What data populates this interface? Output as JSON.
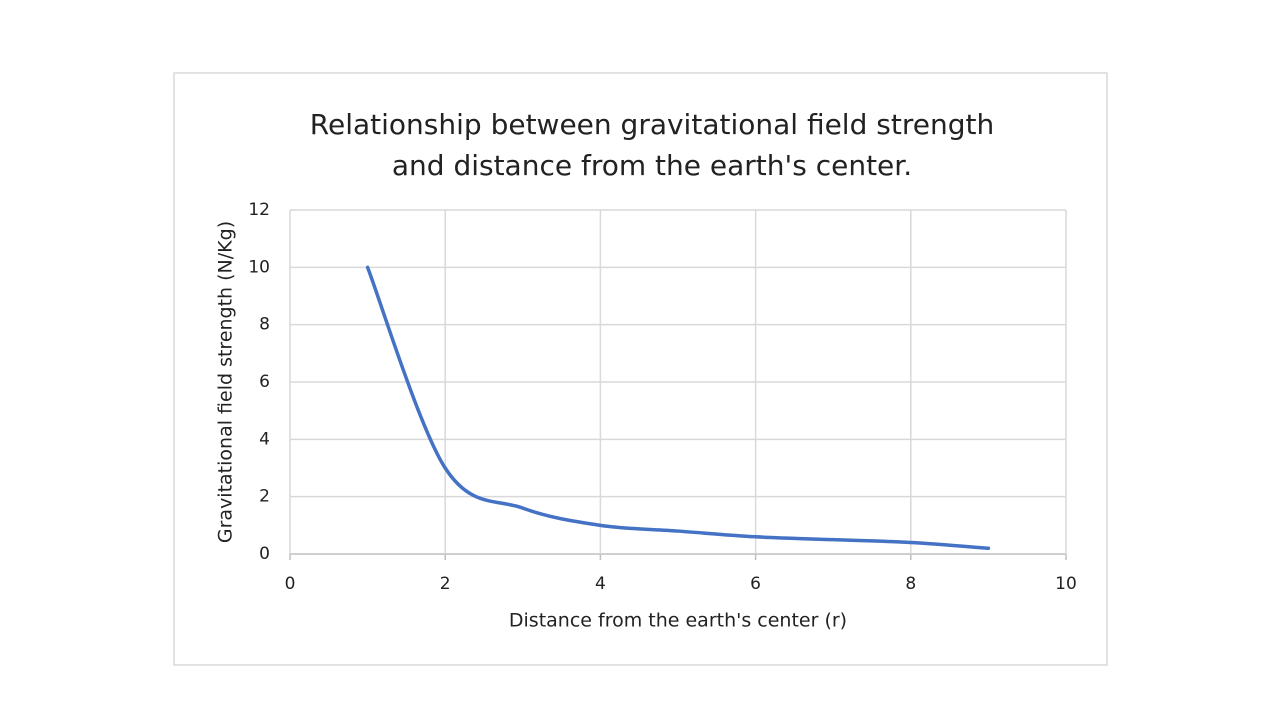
{
  "chart_data": {
    "type": "line",
    "title": [
      "Relationship between gravitational field strength",
      "and distance from the earth's center."
    ],
    "x_label": "Distance from the earth's center (r)",
    "y_label": "Gravitational field strength (N/Kg)",
    "x": [
      1,
      2,
      3,
      4,
      5,
      6,
      7,
      8,
      9
    ],
    "series": [
      {
        "color": "#4472c4",
        "values": [
          10,
          3,
          1.6,
          1,
          0.8,
          0.6,
          0.5,
          0.4,
          0.2
        ]
      }
    ],
    "xlim": [
      0,
      10
    ],
    "xticks": [
      0,
      2,
      4,
      6,
      8,
      10
    ],
    "ylim": [
      0,
      12
    ],
    "yticks": [
      0,
      2,
      4,
      6,
      8,
      10,
      12
    ],
    "grid": true,
    "smooth": true
  }
}
